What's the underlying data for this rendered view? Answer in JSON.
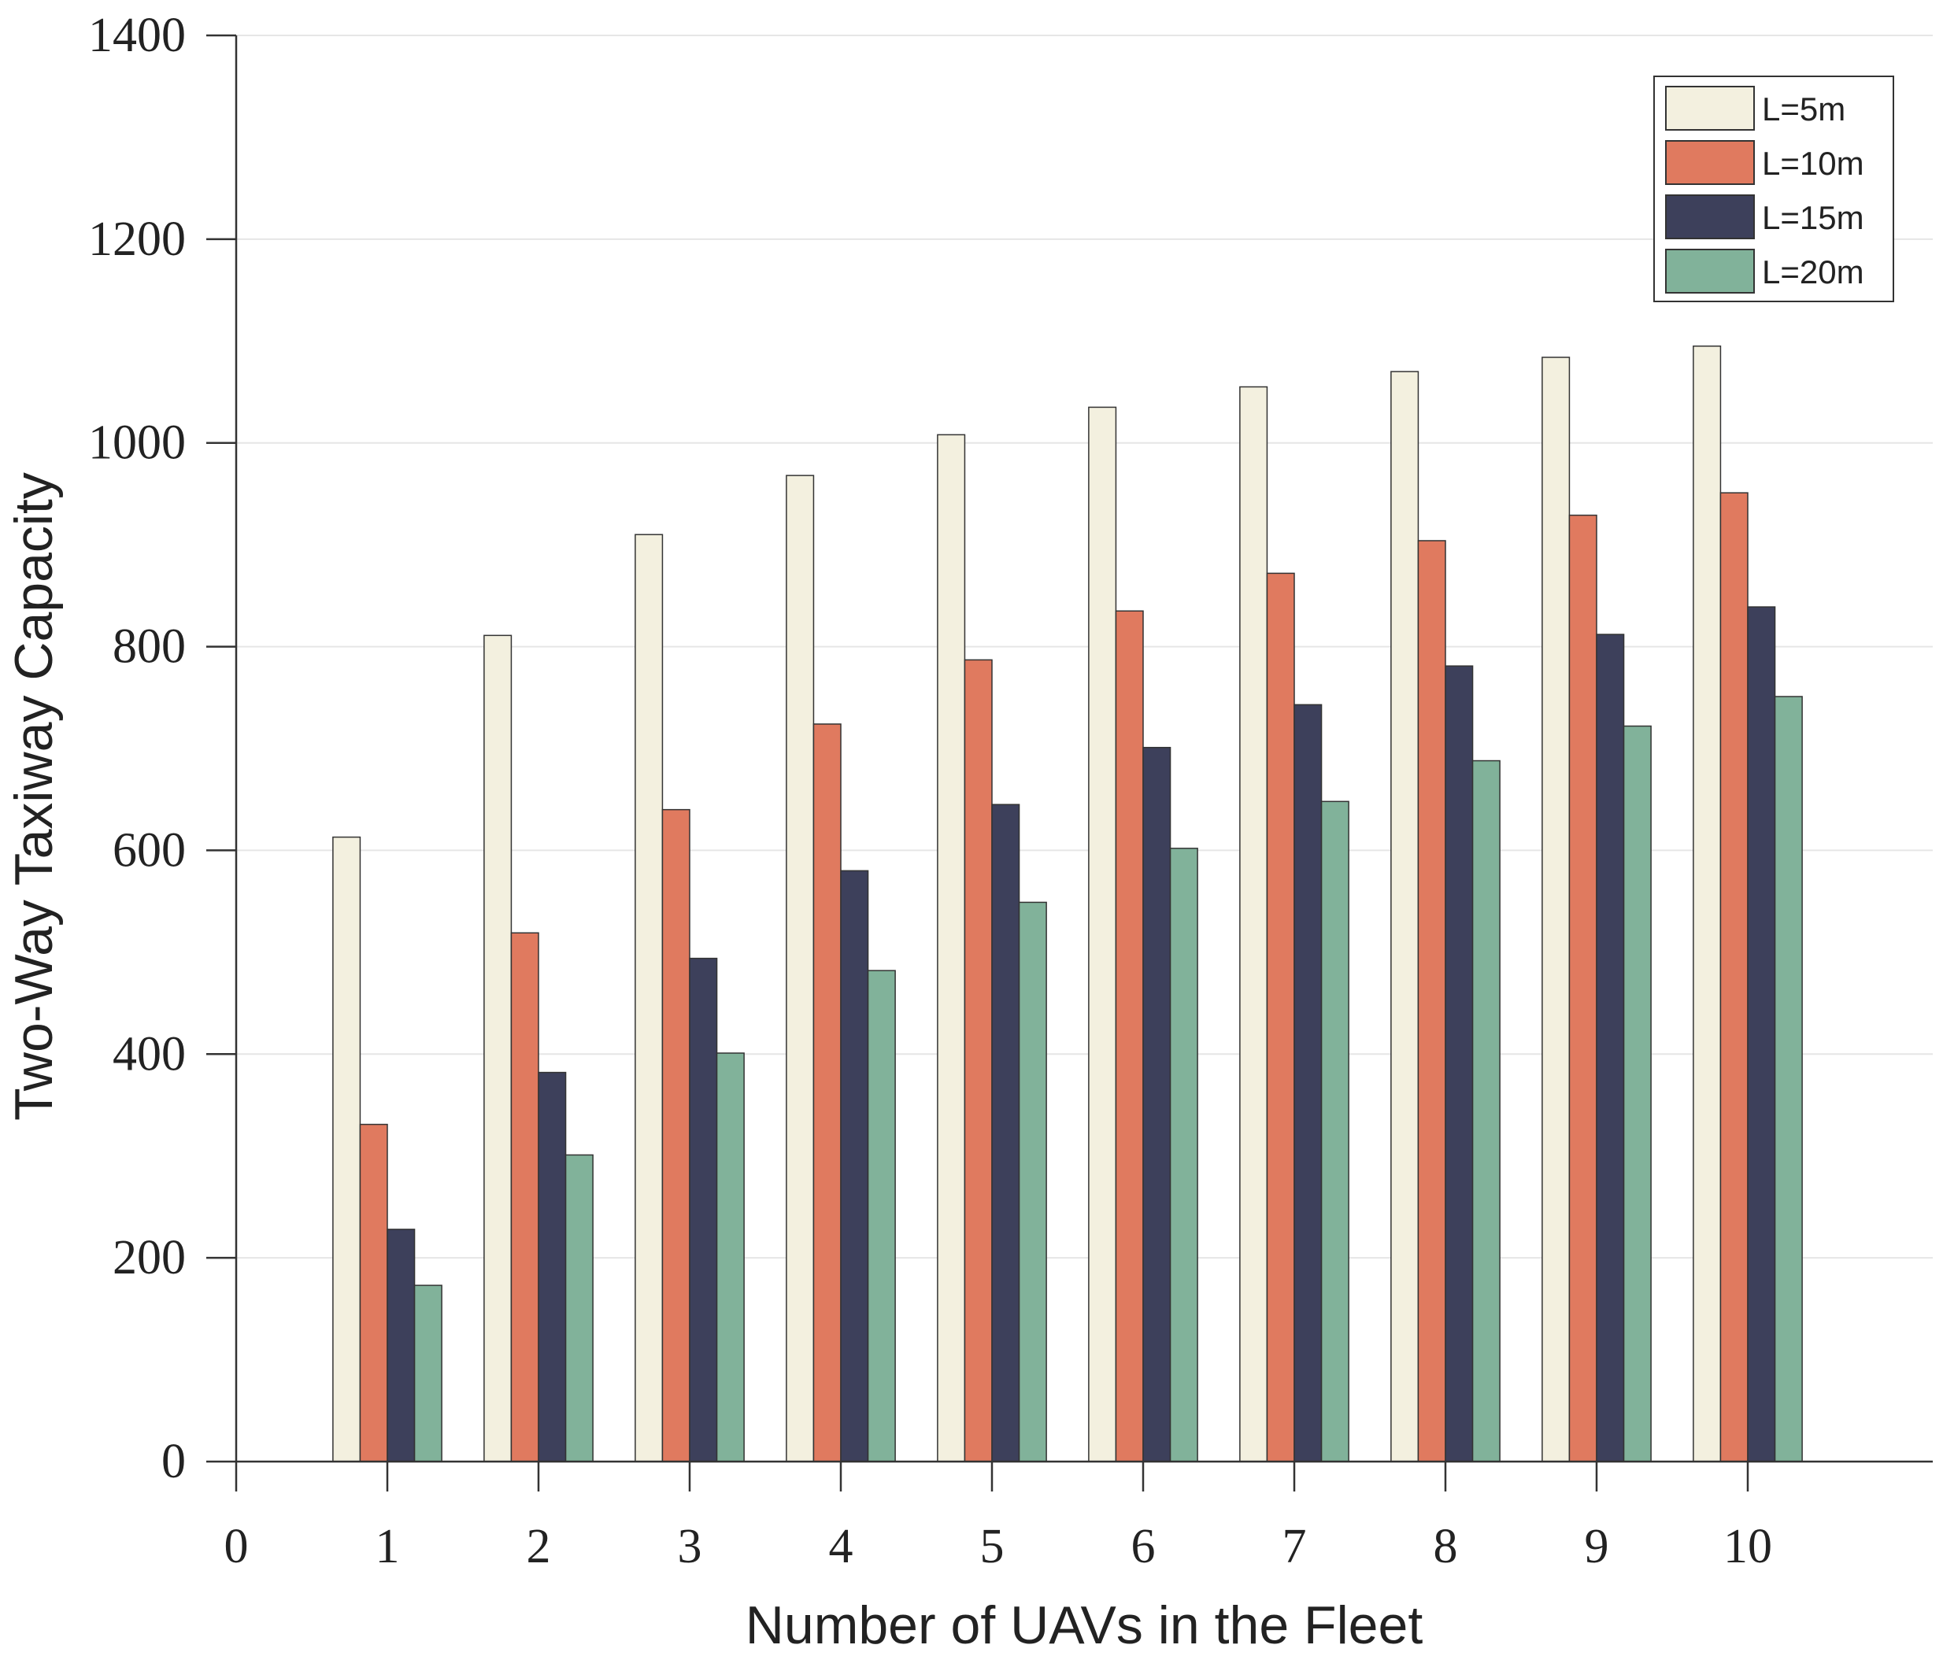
{
  "chart_data": {
    "type": "bar",
    "title": "",
    "xlabel": "Number of UAVs in the Fleet",
    "ylabel": "Two-Way Taxiway Capacity",
    "xlim": [
      0,
      11
    ],
    "ylim": [
      0,
      1400
    ],
    "x_ticks": [
      "0",
      "1",
      "2",
      "3",
      "4",
      "5",
      "6",
      "7",
      "8",
      "9",
      "10"
    ],
    "y_ticks": [
      "0",
      "200",
      "400",
      "600",
      "800",
      "1000",
      "1200",
      "1400"
    ],
    "categories": [
      "1",
      "2",
      "3",
      "4",
      "5",
      "6",
      "7",
      "8",
      "9",
      "10"
    ],
    "grid": "horizontal",
    "legend_position": "top-right",
    "series": [
      {
        "name": "L=5m",
        "color": "#F3F0DF",
        "values": [
          613,
          811,
          910,
          968,
          1008,
          1035,
          1055,
          1070,
          1084,
          1095
        ]
      },
      {
        "name": "L=10m",
        "color": "#E07A5F",
        "values": [
          331,
          519,
          640,
          724,
          787,
          835,
          872,
          904,
          929,
          951
        ]
      },
      {
        "name": "L=15m",
        "color": "#3D405B",
        "values": [
          228,
          382,
          494,
          580,
          645,
          701,
          743,
          781,
          812,
          839
        ]
      },
      {
        "name": "L=20m",
        "color": "#81B29A",
        "values": [
          173,
          301,
          401,
          482,
          549,
          602,
          648,
          688,
          722,
          751
        ]
      }
    ]
  }
}
